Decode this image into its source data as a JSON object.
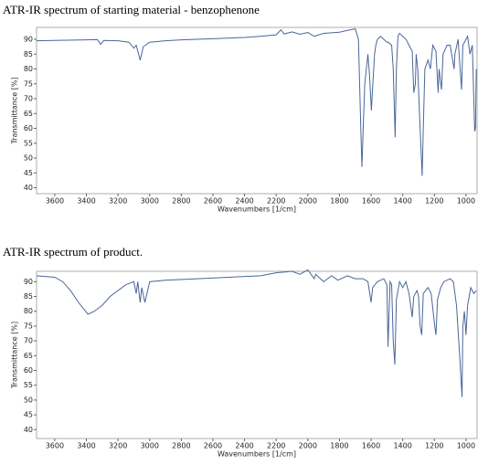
{
  "chart_data": [
    {
      "type": "line",
      "title": "ATR-IR spectrum of starting material - benzophenone",
      "x_label": "Wavenumbers [1/cm]",
      "y_label": "Transmittance [%]",
      "xlim": [
        3715,
        930
      ],
      "ylim": [
        38,
        94
      ],
      "xticks": [
        3600,
        3400,
        3200,
        3000,
        2800,
        2600,
        2400,
        2200,
        2000,
        1800,
        1600,
        1400,
        1200,
        1000
      ],
      "yticks": [
        40,
        45,
        50,
        55,
        60,
        65,
        70,
        75,
        80,
        85,
        90
      ],
      "series": [
        {
          "color": "#4a6699",
          "x": [
            3715,
            3600,
            3400,
            3330,
            3310,
            3290,
            3200,
            3130,
            3100,
            3085,
            3060,
            3040,
            3000,
            2900,
            2800,
            2600,
            2400,
            2300,
            2200,
            2170,
            2150,
            2100,
            2050,
            2000,
            1960,
            1900,
            1800,
            1750,
            1700,
            1680,
            1665,
            1658,
            1650,
            1640,
            1630,
            1620,
            1610,
            1598,
            1590,
            1578,
            1570,
            1560,
            1540,
            1520,
            1500,
            1490,
            1470,
            1460,
            1448,
            1440,
            1430,
            1420,
            1400,
            1380,
            1360,
            1340,
            1330,
            1320,
            1315,
            1305,
            1290,
            1277,
            1270,
            1260,
            1240,
            1225,
            1210,
            1190,
            1176,
            1170,
            1155,
            1145,
            1120,
            1100,
            1075,
            1070,
            1050,
            1028,
            1020,
            1000,
            990,
            975,
            960,
            945,
            940,
            935
          ],
          "values": [
            89.5,
            89.6,
            89.8,
            89.9,
            88.3,
            89.6,
            89.5,
            89,
            87,
            88,
            83,
            87.5,
            89,
            89.5,
            89.8,
            90.2,
            90.6,
            91,
            91.5,
            93.2,
            91.8,
            92.5,
            91.7,
            92.3,
            91,
            92,
            92.4,
            93,
            93.5,
            90,
            60,
            47,
            60,
            75,
            80,
            85,
            78,
            66,
            74,
            85,
            88,
            90,
            91,
            90,
            89,
            89,
            88,
            80,
            57,
            80,
            91,
            92,
            91,
            90,
            88,
            86,
            72,
            75,
            85,
            80,
            60,
            44,
            60,
            80,
            83,
            80,
            88,
            86,
            72,
            80,
            73,
            85,
            88,
            88,
            80,
            85,
            90,
            73,
            88,
            90,
            91,
            85,
            88,
            59,
            60,
            80
          ]
        }
      ]
    },
    {
      "type": "line",
      "title": "ATR-IR spectrum of product.",
      "x_label": "Wavenumbers [1/cm]",
      "y_label": "Transmittance [%]",
      "xlim": [
        3715,
        930
      ],
      "ylim": [
        37,
        93.5
      ],
      "xticks": [
        3600,
        3400,
        3200,
        3000,
        2800,
        2600,
        2400,
        2200,
        2000,
        1800,
        1600,
        1400,
        1200,
        1000
      ],
      "yticks": [
        40,
        45,
        50,
        55,
        60,
        65,
        70,
        75,
        80,
        85,
        90
      ],
      "series": [
        {
          "color": "#4a6699",
          "x": [
            3715,
            3600,
            3550,
            3500,
            3450,
            3390,
            3350,
            3300,
            3250,
            3150,
            3100,
            3085,
            3075,
            3060,
            3050,
            3030,
            3000,
            2900,
            2700,
            2500,
            2300,
            2200,
            2100,
            2050,
            2000,
            1960,
            1950,
            1900,
            1850,
            1810,
            1750,
            1700,
            1650,
            1620,
            1600,
            1590,
            1560,
            1520,
            1500,
            1493,
            1480,
            1470,
            1460,
            1450,
            1440,
            1420,
            1400,
            1380,
            1360,
            1340,
            1330,
            1310,
            1300,
            1290,
            1280,
            1270,
            1240,
            1220,
            1200,
            1190,
            1180,
            1160,
            1140,
            1100,
            1080,
            1060,
            1040,
            1025,
            1020,
            1010,
            1000,
            990,
            970,
            950,
            935
          ],
          "values": [
            92,
            91.5,
            90,
            87,
            83,
            79,
            80,
            82,
            85,
            89,
            90,
            86,
            90,
            83,
            88,
            83,
            90,
            90.5,
            91,
            91.5,
            92,
            93,
            93.5,
            92.5,
            94,
            91,
            92.5,
            90,
            92,
            90.5,
            92,
            91,
            91,
            90,
            83,
            88,
            90,
            91,
            89,
            68,
            90,
            89,
            70,
            62,
            84,
            90,
            88,
            90,
            86,
            78,
            85,
            87,
            85,
            75,
            72,
            86,
            88,
            86,
            76,
            72,
            84,
            88,
            90,
            91,
            90,
            82,
            65,
            51,
            75,
            80,
            72,
            82,
            88,
            86,
            87
          ]
        }
      ]
    }
  ]
}
